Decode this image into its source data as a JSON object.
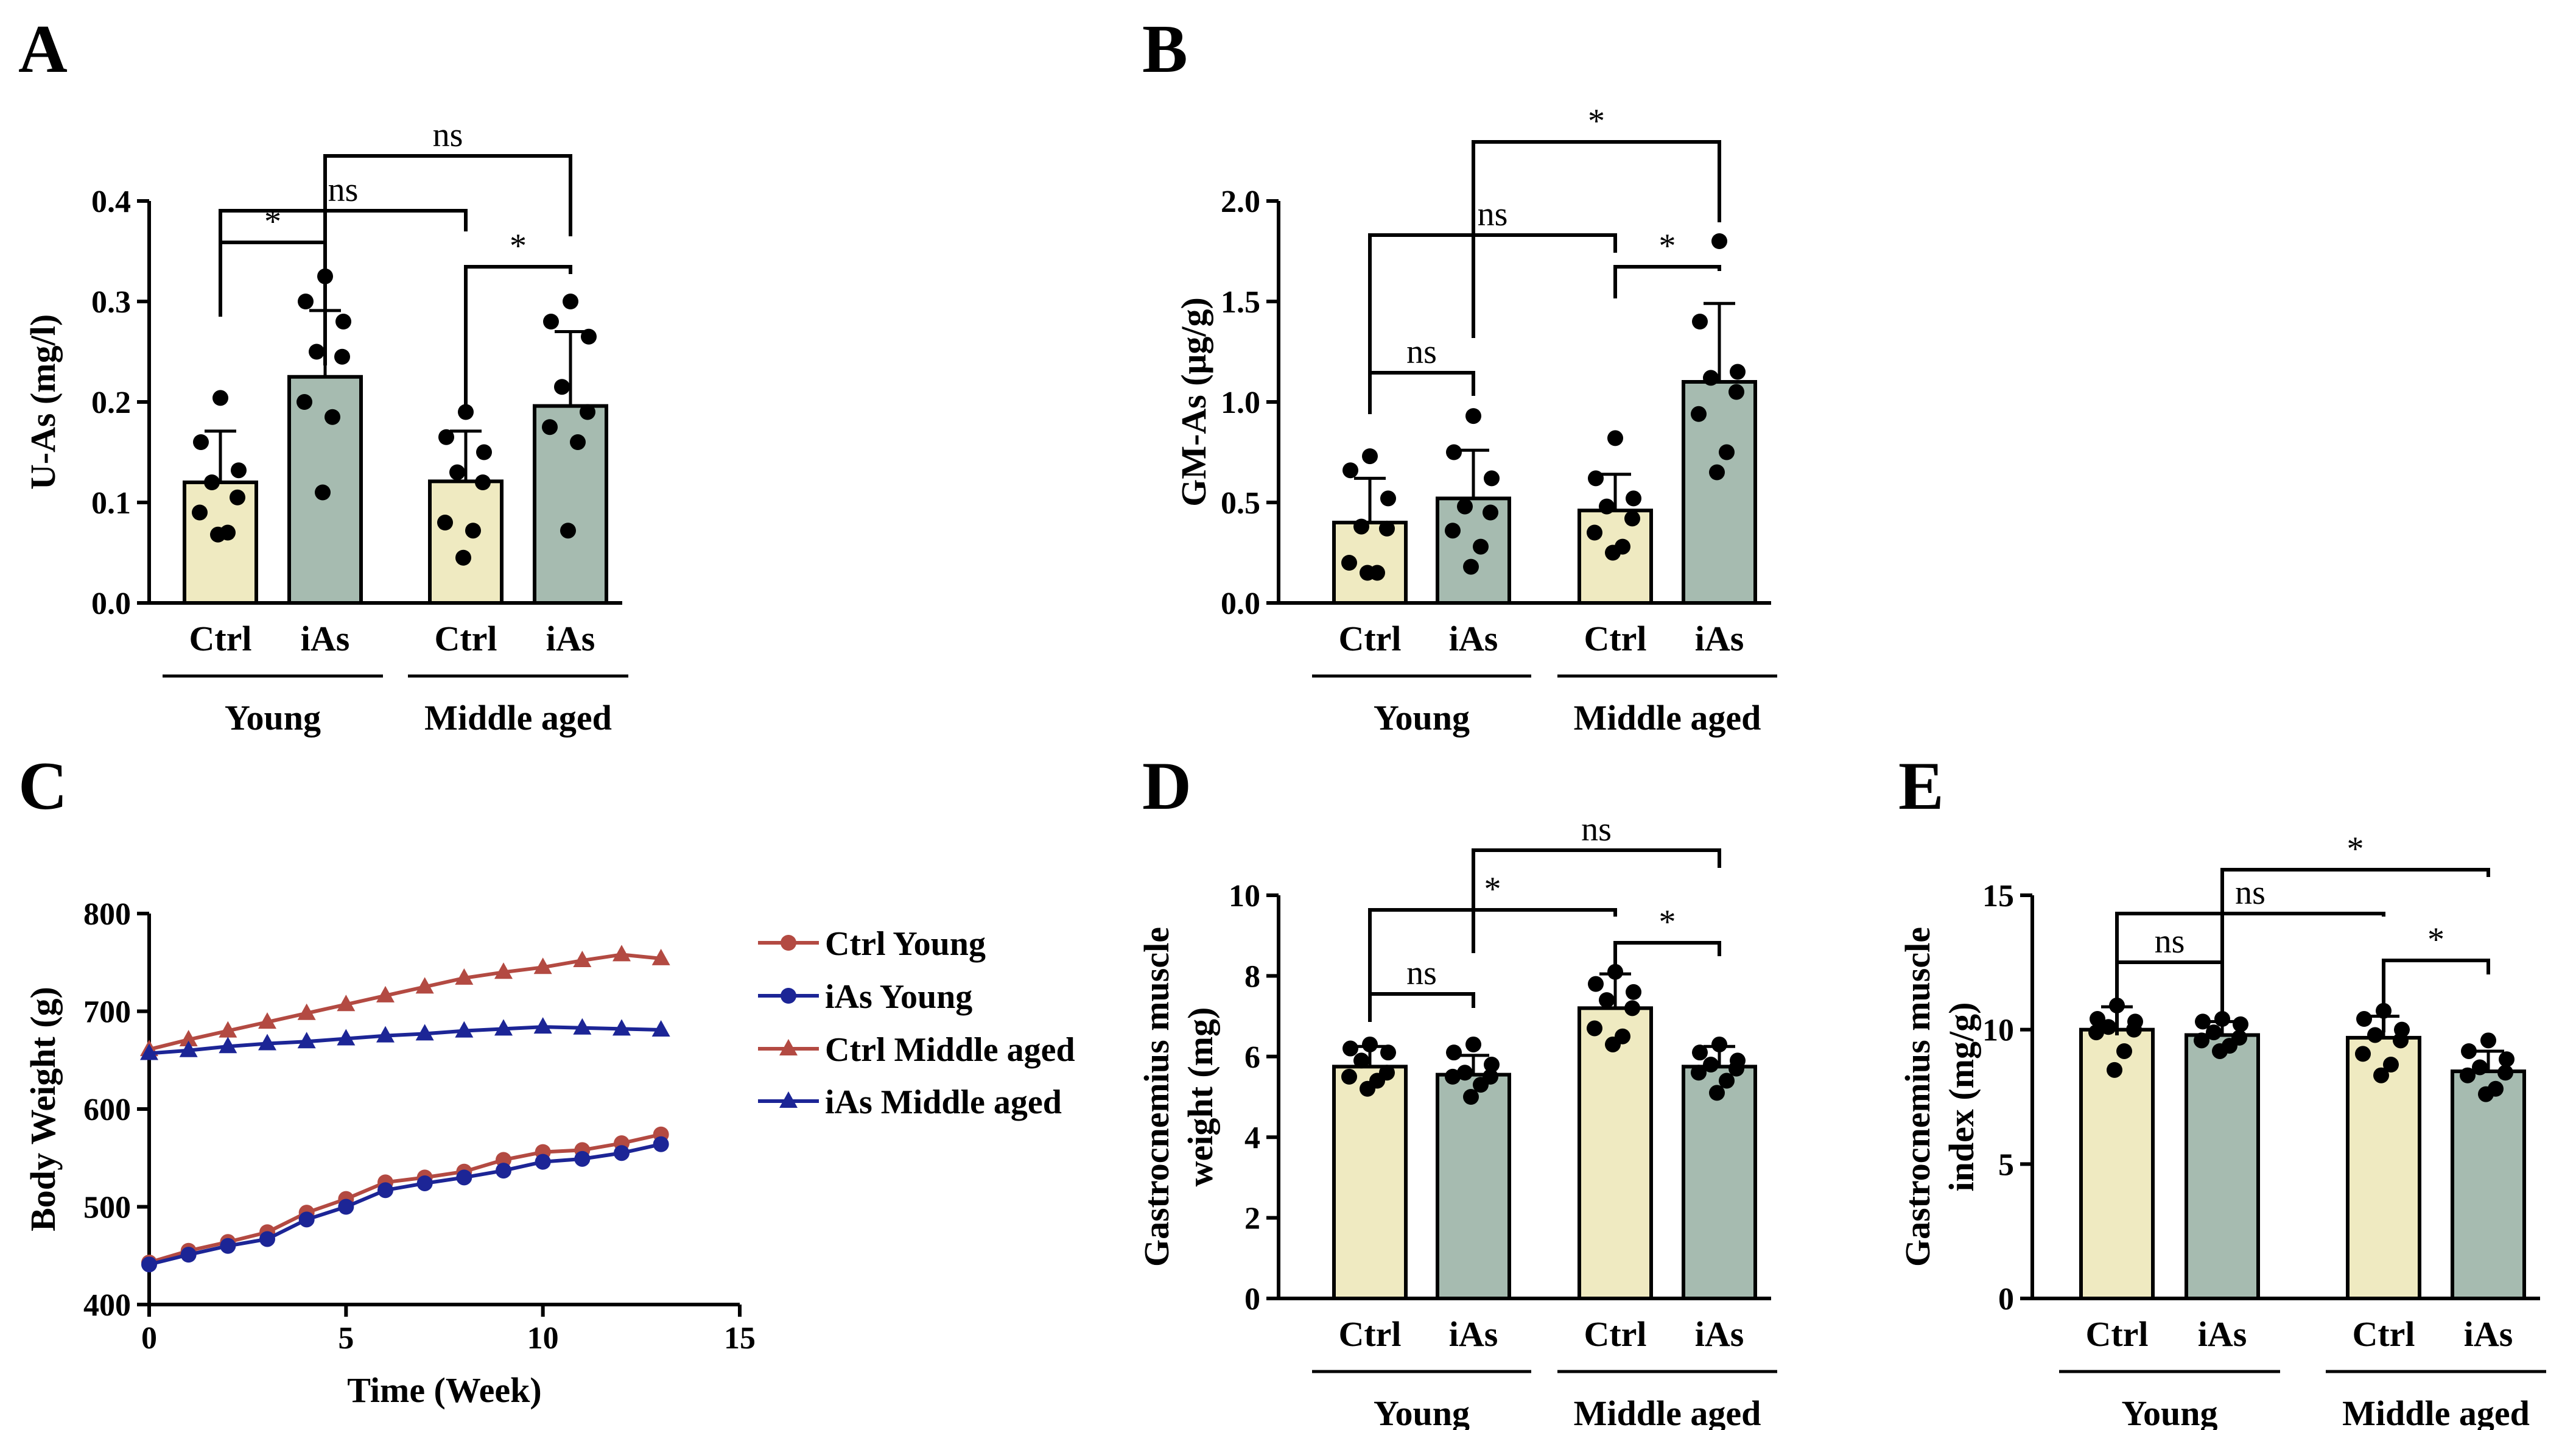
{
  "colors": {
    "ctrl_bar": "#efeac1",
    "ias_bar": "#a6bbb0",
    "ctrl_line": "#b34a42",
    "ias_line": "#1c2596",
    "dot": "#000000"
  },
  "chart_data": [
    {
      "panel": "A",
      "type": "bar",
      "ylabel": "U-As (mg/l)",
      "ylim": [
        0,
        0.4
      ],
      "yticks": [
        "0.0",
        "0.1",
        "0.2",
        "0.3",
        "0.4"
      ],
      "categories": [
        "Ctrl",
        "iAs",
        "Ctrl",
        "iAs"
      ],
      "groups": [
        "Young",
        "Middle aged"
      ],
      "values": [
        0.12,
        0.225,
        0.121,
        0.196
      ],
      "errors": [
        0.051,
        0.066,
        0.05,
        0.074
      ],
      "points": [
        [
          0.204,
          0.16,
          0.132,
          0.12,
          0.105,
          0.09,
          0.07,
          0.068
        ],
        [
          0.325,
          0.3,
          0.28,
          0.25,
          0.245,
          0.2,
          0.185,
          0.11
        ],
        [
          0.19,
          0.165,
          0.15,
          0.13,
          0.12,
          0.08,
          0.072,
          0.045
        ],
        [
          0.3,
          0.28,
          0.265,
          0.215,
          0.19,
          0.175,
          0.16,
          0.072
        ]
      ],
      "brackets": [
        {
          "from": 0,
          "to": 1,
          "label": "*"
        },
        {
          "from": 0,
          "to": 2,
          "label": "ns"
        },
        {
          "from": 2,
          "to": 3,
          "label": "*"
        },
        {
          "from": 1,
          "to": 3,
          "label": "ns"
        }
      ]
    },
    {
      "panel": "B",
      "type": "bar",
      "ylabel": "GM-As (μg/g)",
      "ylim": [
        0,
        2.0
      ],
      "yticks": [
        "0.0",
        "0.5",
        "1.0",
        "1.5",
        "2.0"
      ],
      "categories": [
        "Ctrl",
        "iAs",
        "Ctrl",
        "iAs"
      ],
      "groups": [
        "Young",
        "Middle aged"
      ],
      "values": [
        0.4,
        0.52,
        0.46,
        1.1
      ],
      "errors": [
        0.22,
        0.24,
        0.18,
        0.39
      ],
      "points": [
        [
          0.73,
          0.66,
          0.52,
          0.38,
          0.37,
          0.2,
          0.15,
          0.15
        ],
        [
          0.93,
          0.75,
          0.62,
          0.48,
          0.45,
          0.36,
          0.28,
          0.18
        ],
        [
          0.82,
          0.62,
          0.52,
          0.48,
          0.42,
          0.35,
          0.28,
          0.25
        ],
        [
          1.8,
          1.4,
          1.15,
          1.12,
          1.05,
          0.94,
          0.75,
          0.65
        ]
      ],
      "brackets": [
        {
          "from": 0,
          "to": 1,
          "label": "ns"
        },
        {
          "from": 0,
          "to": 2,
          "label": "ns"
        },
        {
          "from": 2,
          "to": 3,
          "label": "*"
        },
        {
          "from": 1,
          "to": 3,
          "label": "*"
        }
      ]
    },
    {
      "panel": "C",
      "type": "line",
      "xlabel": "Time (Week)",
      "ylabel": "Body Weight (g)",
      "xlim": [
        0,
        15
      ],
      "ylim": [
        400,
        800
      ],
      "xticks": [
        "0",
        "5",
        "10",
        "15"
      ],
      "yticks": [
        "400",
        "500",
        "600",
        "700",
        "800"
      ],
      "x": [
        0,
        1,
        2,
        3,
        4,
        5,
        6,
        7,
        8,
        9,
        10,
        11,
        12,
        13
      ],
      "series": [
        {
          "name": "Ctrl  Young",
          "marker": "circle",
          "values": [
            443,
            455,
            464,
            474,
            494,
            508,
            525,
            530,
            536,
            548,
            556,
            558,
            565,
            574
          ]
        },
        {
          "name": "iAs    Young",
          "marker": "circle",
          "values": [
            441,
            451,
            460,
            467,
            487,
            500,
            517,
            524,
            530,
            537,
            546,
            549,
            555,
            564
          ]
        },
        {
          "name": "Ctrl  Middle aged",
          "marker": "triangle",
          "values": [
            661,
            671,
            680,
            689,
            698,
            707,
            716,
            725,
            734,
            740,
            745,
            752,
            758,
            754
          ]
        },
        {
          "name": "iAs   Middle aged",
          "marker": "triangle",
          "values": [
            657,
            660,
            664,
            667,
            669,
            672,
            675,
            677,
            680,
            682,
            684,
            683,
            682,
            681
          ]
        }
      ]
    },
    {
      "panel": "D",
      "type": "bar",
      "ylabel": "Gastrocnemius muscle weight (mg)",
      "ylabel_lines": [
        "Gastrocnemius muscle",
        "weight (mg)"
      ],
      "ylim": [
        0,
        10
      ],
      "yticks": [
        "0",
        "2",
        "4",
        "6",
        "8",
        "10"
      ],
      "categories": [
        "Ctrl",
        "iAs",
        "Ctrl",
        "iAs"
      ],
      "groups": [
        "Young",
        "Middle aged"
      ],
      "values": [
        5.75,
        5.55,
        7.2,
        5.75
      ],
      "errors": [
        0.5,
        0.48,
        0.85,
        0.5
      ],
      "points": [
        [
          6.3,
          6.2,
          6.1,
          5.9,
          5.6,
          5.5,
          5.4,
          5.2
        ],
        [
          6.3,
          6.1,
          5.8,
          5.6,
          5.5,
          5.5,
          5.3,
          5.0
        ],
        [
          8.1,
          7.8,
          7.6,
          7.4,
          7.2,
          6.7,
          6.5,
          6.3
        ],
        [
          6.3,
          6.1,
          5.9,
          5.8,
          5.7,
          5.6,
          5.4,
          5.1
        ]
      ],
      "brackets": [
        {
          "from": 0,
          "to": 1,
          "label": "ns"
        },
        {
          "from": 0,
          "to": 2,
          "label": "*"
        },
        {
          "from": 2,
          "to": 3,
          "label": "*"
        },
        {
          "from": 1,
          "to": 3,
          "label": "ns"
        }
      ]
    },
    {
      "panel": "E",
      "type": "bar",
      "ylabel": "Gastrocnemius muscle index (mg/g)",
      "ylabel_lines": [
        "Gastrocnemius muscle",
        "index (mg/g)"
      ],
      "ylim": [
        0,
        15
      ],
      "yticks": [
        "0",
        "5",
        "10",
        "15"
      ],
      "categories": [
        "Ctrl",
        "iAs",
        "Ctrl",
        "iAs"
      ],
      "groups": [
        "Young",
        "Middle aged"
      ],
      "values": [
        10.0,
        9.8,
        9.7,
        8.45
      ],
      "errors": [
        0.85,
        0.5,
        0.8,
        0.75
      ],
      "points": [
        [
          10.9,
          10.4,
          10.3,
          10.1,
          10.0,
          9.9,
          9.2,
          8.5
        ],
        [
          10.4,
          10.3,
          10.2,
          9.9,
          9.7,
          9.6,
          9.4,
          9.2
        ],
        [
          10.7,
          10.4,
          10.0,
          9.8,
          9.6,
          9.1,
          8.7,
          8.3
        ],
        [
          9.6,
          9.2,
          8.9,
          8.6,
          8.4,
          8.3,
          7.8,
          7.6
        ]
      ],
      "brackets": [
        {
          "from": 0,
          "to": 1,
          "label": "ns"
        },
        {
          "from": 0,
          "to": 2,
          "label": "ns"
        },
        {
          "from": 2,
          "to": 3,
          "label": "*"
        },
        {
          "from": 1,
          "to": 3,
          "label": "*"
        }
      ]
    }
  ]
}
